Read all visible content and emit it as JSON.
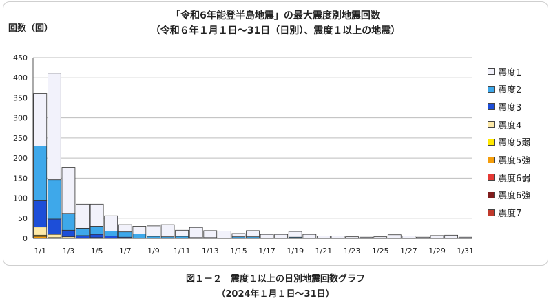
{
  "chart_data": {
    "type": "bar",
    "stacked": true,
    "title_line1": "「令和6年能登半島地震」の最大震度別地震回数",
    "title_line2": "（令和６年１月１日～31日（日別）、震度１以上の地震）",
    "ylabel": "回数（回）",
    "ylim": [
      0,
      450
    ],
    "yticks": [
      0,
      50,
      100,
      150,
      200,
      250,
      300,
      350,
      400,
      450
    ],
    "grid": true,
    "legend_position": "right",
    "categories": [
      "1/1",
      "1/2",
      "1/3",
      "1/4",
      "1/5",
      "1/6",
      "1/7",
      "1/8",
      "1/9",
      "1/10",
      "1/11",
      "1/12",
      "1/13",
      "1/14",
      "1/15",
      "1/16",
      "1/17",
      "1/18",
      "1/19",
      "1/20",
      "1/21",
      "1/22",
      "1/23",
      "1/24",
      "1/25",
      "1/26",
      "1/27",
      "1/28",
      "1/29",
      "1/30",
      "1/31"
    ],
    "xtick_labels": [
      "1/1",
      "1/3",
      "1/5",
      "1/7",
      "1/9",
      "1/11",
      "1/13",
      "1/15",
      "1/17",
      "1/19",
      "1/21",
      "1/23",
      "1/25",
      "1/27",
      "1/29",
      "1/31"
    ],
    "series": [
      {
        "name": "震度7",
        "color": "#c0392b",
        "values": [
          1,
          0,
          0,
          0,
          0,
          0,
          0,
          0,
          0,
          0,
          0,
          0,
          0,
          0,
          0,
          0,
          0,
          0,
          0,
          0,
          0,
          0,
          0,
          0,
          0,
          0,
          0,
          0,
          0,
          0,
          0
        ]
      },
      {
        "name": "震度6強",
        "color": "#7f1d1d",
        "values": [
          0,
          0,
          0,
          0,
          0,
          0,
          0,
          0,
          0,
          0,
          0,
          0,
          0,
          0,
          0,
          0,
          0,
          0,
          0,
          0,
          0,
          0,
          0,
          0,
          0,
          0,
          0,
          0,
          0,
          0,
          0
        ]
      },
      {
        "name": "震度6弱",
        "color": "#e53935",
        "values": [
          0,
          0,
          0,
          0,
          0,
          0,
          0,
          0,
          0,
          0,
          0,
          0,
          0,
          0,
          0,
          0,
          0,
          0,
          0,
          0,
          0,
          0,
          0,
          0,
          0,
          0,
          0,
          0,
          0,
          0,
          0
        ]
      },
      {
        "name": "震度5強",
        "color": "#f59e0b",
        "values": [
          4,
          0,
          0,
          0,
          0,
          0,
          0,
          0,
          0,
          0,
          0,
          0,
          0,
          0,
          0,
          0,
          0,
          0,
          0,
          0,
          0,
          0,
          0,
          0,
          0,
          0,
          0,
          0,
          0,
          0,
          0
        ]
      },
      {
        "name": "震度5弱",
        "color": "#ffe800",
        "values": [
          3,
          2,
          0,
          0,
          0,
          0,
          0,
          0,
          0,
          0,
          0,
          0,
          0,
          0,
          0,
          0,
          0,
          0,
          0,
          0,
          0,
          0,
          0,
          0,
          0,
          0,
          0,
          0,
          0,
          0,
          0
        ]
      },
      {
        "name": "震度4",
        "color": "#fde9a8",
        "values": [
          20,
          8,
          4,
          1,
          2,
          1,
          0,
          0,
          0,
          0,
          0,
          0,
          0,
          0,
          0,
          0,
          0,
          0,
          0,
          0,
          0,
          0,
          0,
          0,
          0,
          0,
          0,
          0,
          0,
          0,
          0
        ]
      },
      {
        "name": "震度3",
        "color": "#1d4ed8",
        "values": [
          67,
          38,
          16,
          6,
          8,
          5,
          3,
          1,
          1,
          1,
          0,
          0,
          0,
          0,
          0,
          0,
          0,
          0,
          0,
          0,
          0,
          0,
          0,
          0,
          0,
          0,
          0,
          0,
          0,
          0,
          0
        ]
      },
      {
        "name": "震度2",
        "color": "#3ea8ea",
        "values": [
          135,
          98,
          42,
          18,
          20,
          12,
          13,
          10,
          4,
          3,
          5,
          2,
          2,
          1,
          4,
          4,
          1,
          1,
          3,
          0,
          1,
          0,
          0,
          0,
          0,
          0,
          0,
          0,
          0,
          0,
          0
        ]
      },
      {
        "name": "震度1",
        "color": "#f2f2fb",
        "values": [
          130,
          265,
          115,
          60,
          55,
          38,
          18,
          19,
          26,
          30,
          15,
          25,
          17,
          17,
          8,
          15,
          9,
          9,
          14,
          10,
          5,
          6,
          4,
          3,
          4,
          9,
          6,
          3,
          7,
          8,
          3
        ]
      }
    ],
    "legend_order": [
      "震度1",
      "震度2",
      "震度3",
      "震度4",
      "震度5弱",
      "震度5強",
      "震度6弱",
      "震度6強",
      "震度7"
    ]
  },
  "caption": {
    "line1": "図１－２　震度１以上の日別地震回数グラフ",
    "line2": "（2024年１月１日～31日）"
  }
}
